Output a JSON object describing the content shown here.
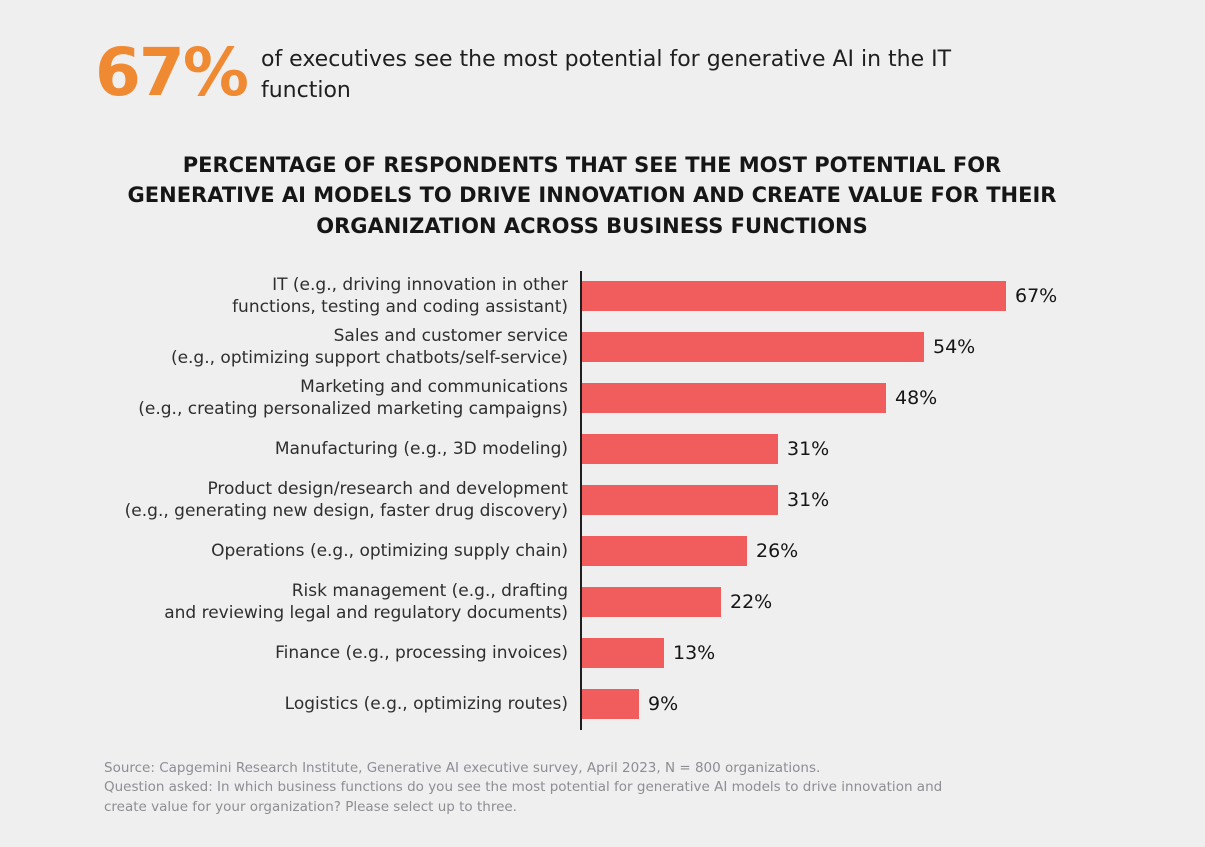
{
  "headline": {
    "stat": "67%",
    "text": "of executives see the most potential for generative AI in the IT\nfunction"
  },
  "chart": {
    "title": "PERCENTAGE OF RESPONDENTS THAT SEE THE MOST POTENTIAL FOR\nGENERATIVE AI MODELS TO DRIVE INNOVATION AND CREATE VALUE FOR THEIR\nORGANIZATION ACROSS BUSINESS FUNCTIONS"
  },
  "chart_data": {
    "type": "bar",
    "orientation": "horizontal",
    "title": "Percentage of respondents that see the most potential for generative AI models to drive innovation and create value for their organization across business functions",
    "categories": [
      "IT (e.g., driving innovation in other\nfunctions, testing and coding assistant)",
      "Sales and customer service\n(e.g., optimizing support chatbots/self-service)",
      "Marketing and communications\n(e.g., creating personalized marketing campaigns)",
      "Manufacturing (e.g., 3D modeling)",
      "Product design/research and development\n(e.g., generating new design, faster drug discovery)",
      "Operations (e.g., optimizing supply chain)",
      "Risk management (e.g., drafting\nand reviewing legal and regulatory documents)",
      "Finance (e.g., processing invoices)",
      "Logistics (e.g., optimizing routes)"
    ],
    "values": [
      67,
      54,
      48,
      31,
      31,
      26,
      22,
      13,
      9
    ],
    "data_labels": [
      "67%",
      "54%",
      "48%",
      "31%",
      "31%",
      "26%",
      "22%",
      "13%",
      "9%"
    ],
    "xlim": [
      0,
      100
    ],
    "xlabel": "",
    "ylabel": "",
    "grid": false,
    "legend": false,
    "bar_color": "#F05D5C",
    "axis_color": "#1f1f1f"
  },
  "footer": {
    "source": "Source: Capgemini Research Institute, Generative AI executive survey, April 2023, N = 800 organizations.",
    "question": "Question asked: In which business functions do you see the most potential for generative AI models to drive innovation and",
    "question_continued": "create value for your organization? Please select up to three."
  },
  "colors": {
    "accent_orange": "#EF8A33",
    "bar_red": "#F05D5C",
    "background": "#F0EFF0",
    "text_dark": "#1A1A1A",
    "text_gray": "#8D8D92"
  }
}
